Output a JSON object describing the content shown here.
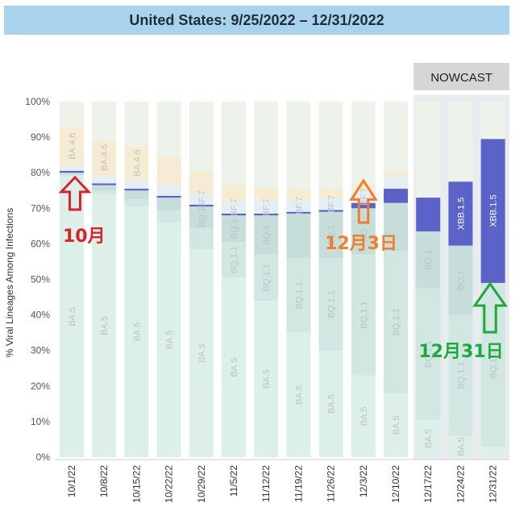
{
  "title": "United States: 9/25/2022 – 12/31/2022",
  "nowcast_label": "NOWCAST",
  "chart_data": {
    "type": "bar",
    "stacked": true,
    "ylabel": "% Viral Lineages Among Infections",
    "ylim": [
      0,
      100
    ],
    "yticks": [
      "0%",
      "10%",
      "20%",
      "30%",
      "40%",
      "50%",
      "60%",
      "70%",
      "80%",
      "90%",
      "100%"
    ],
    "categories": [
      "10/1/22",
      "10/8/22",
      "10/15/22",
      "10/22/22",
      "10/29/22",
      "11/5/22",
      "11/12/22",
      "11/19/22",
      "11/26/22",
      "12/3/22",
      "12/10/22",
      "12/17/22",
      "12/24/22",
      "12/31/22"
    ],
    "nowcast_categories": [
      "12/17/22",
      "12/24/22",
      "12/31/22"
    ],
    "series": [
      {
        "name": "BA.5",
        "color": "#dcefe8",
        "values": [
          79.0,
          74.0,
          70.5,
          66.0,
          58.5,
          50.5,
          44.0,
          35.0,
          30.0,
          23.0,
          18.0,
          10.5,
          6.0,
          3.0
        ]
      },
      {
        "name": "BQ.1.1",
        "color": "#d2e6e2",
        "values": [
          0.5,
          1.0,
          2.0,
          3.5,
          6.0,
          10.0,
          13.0,
          21.0,
          26.0,
          34.0,
          40.0,
          37.0,
          34.0,
          46.0
        ]
      },
      {
        "name": "BQ.1",
        "color": "#c6ddd9",
        "values": [
          0.5,
          1.5,
          2.5,
          3.5,
          6.0,
          7.5,
          11.0,
          12.5,
          13.0,
          13.0,
          13.5,
          16.0,
          19.5,
          null
        ]
      },
      {
        "name": "XBB.1.5",
        "color": "#5b62c8",
        "values": [
          0.5,
          0.5,
          0.5,
          0.5,
          0.5,
          0.5,
          0.5,
          0.5,
          0.5,
          1.5,
          4.0,
          9.5,
          18.0,
          40.5
        ]
      },
      {
        "name": "BF.7",
        "color": "#e6eef5",
        "values": [
          1.5,
          2.0,
          2.5,
          3.0,
          3.0,
          3.5,
          3.5,
          3.5,
          3.5,
          3.5,
          3.5,
          null,
          null,
          null
        ]
      },
      {
        "name": "BA.4.6",
        "color": "#f6ecd3",
        "values": [
          11.0,
          10.5,
          9.5,
          8.0,
          6.5,
          5.0,
          4.0,
          3.0,
          2.5,
          2.0,
          1.5,
          null,
          null,
          null
        ]
      },
      {
        "name": "",
        "color": "#edf3ea",
        "values": [
          7.0,
          10.5,
          12.5,
          15.5,
          19.5,
          23.0,
          24.0,
          24.5,
          24.5,
          23.0,
          19.5,
          27.0,
          22.5,
          10.5
        ]
      }
    ],
    "bar_labels": [
      {
        "series": "BA.5",
        "bars": [
          "10/1/22",
          "10/8/22",
          "10/15/22",
          "10/22/22",
          "10/29/22",
          "11/5/22",
          "11/12/22",
          "11/19/22",
          "11/26/22",
          "12/3/22",
          "12/10/22",
          "12/17/22",
          "12/24/22"
        ]
      },
      {
        "series": "BA.4.6",
        "bars": [
          "10/1/22",
          "10/8/22",
          "10/15/22"
        ]
      },
      {
        "series": "BF.7",
        "bars": [
          "10/29/22",
          "11/5/22",
          "11/12/22",
          "11/19/22",
          "11/26/22",
          "12/3/22"
        ]
      },
      {
        "series": "BQ.1",
        "bars": [
          "10/29/22",
          "11/5/22",
          "11/12/22",
          "11/26/22",
          "12/3/22",
          "12/17/22",
          "12/24/22"
        ]
      },
      {
        "series": "BQ.1.1",
        "bars": [
          "11/5/22",
          "11/12/22",
          "11/19/22",
          "11/26/22",
          "12/3/22",
          "12/10/22",
          "12/17/22",
          "12/24/22",
          "12/31/22"
        ]
      },
      {
        "series": "XBB.1.5",
        "bars": [
          "12/24/22",
          "12/31/22"
        ]
      }
    ],
    "annotations": [
      {
        "text": "10月",
        "bar": "10/1/22",
        "color": "#d8232a"
      },
      {
        "text": "12月3日",
        "bar": "12/3/22",
        "color": "#f07d2c"
      },
      {
        "text": "12月31日",
        "bar": "12/31/22",
        "color": "#1fa93a"
      }
    ]
  }
}
